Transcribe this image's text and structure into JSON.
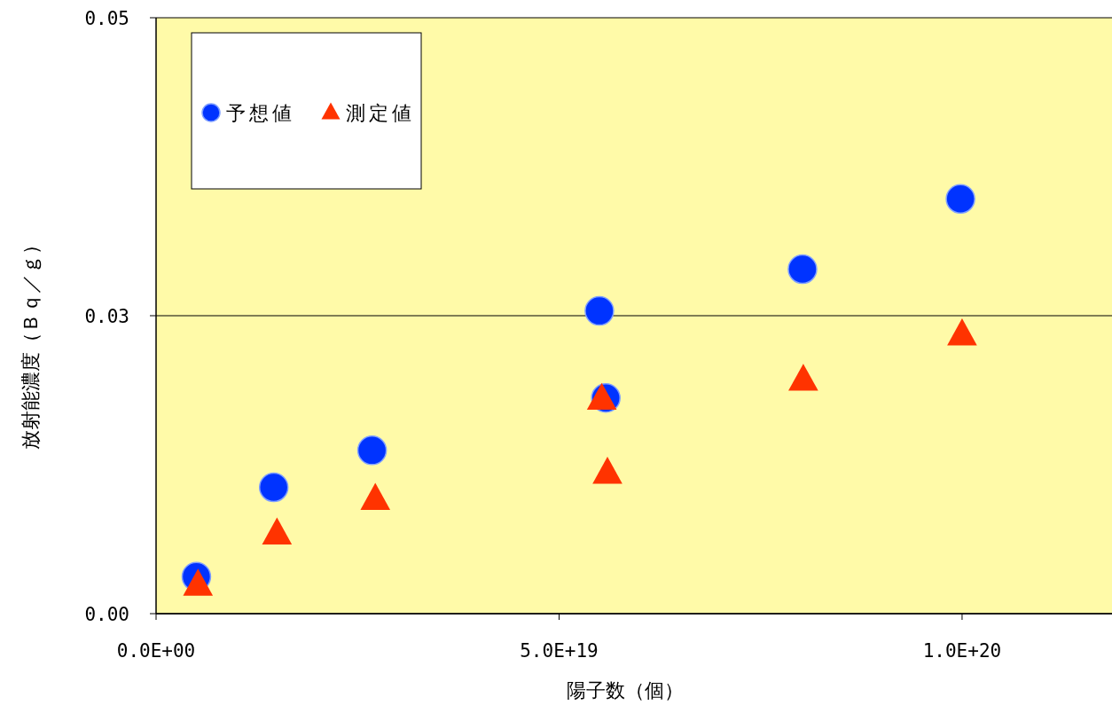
{
  "chart_data": {
    "type": "scatter",
    "xlabel": "陽子数（個）",
    "ylabel": "放射能濃度（Ｂｑ／ｇ）",
    "xlim": [
      0,
      1.186e+20
    ],
    "ylim": [
      0,
      0.05
    ],
    "xticks": [
      {
        "value": 0,
        "label": "0.0E+00"
      },
      {
        "value": 5e+19,
        "label": "5.0E+19"
      },
      {
        "value": 1e+20,
        "label": "1.0E+20"
      }
    ],
    "yticks": [
      {
        "value": 0,
        "label": "0.00"
      },
      {
        "value": 0.025,
        "label": "0.03"
      },
      {
        "value": 0.05,
        "label": "0.05"
      }
    ],
    "grid": "y",
    "legend": "top left",
    "series": [
      {
        "name": "予想値",
        "color": "#0033ff",
        "marker": "circle",
        "x": [
          5e+18,
          1.46e+19,
          2.68e+19,
          5.5e+19,
          5.58e+19,
          8.02e+19,
          9.98e+19
        ],
        "values": [
          0.0031,
          0.0106,
          0.0137,
          0.0254,
          0.0181,
          0.0289,
          0.0348
        ]
      },
      {
        "name": "測定値",
        "color": "#ff3300",
        "marker": "triangle",
        "x": [
          5.2e+18,
          1.5e+19,
          2.72e+19,
          5.53e+19,
          5.6e+19,
          8.03e+19,
          1e+20
        ],
        "values": [
          0.0024,
          0.0067,
          0.0096,
          0.018,
          0.0118,
          0.0196,
          0.0234
        ]
      }
    ]
  }
}
